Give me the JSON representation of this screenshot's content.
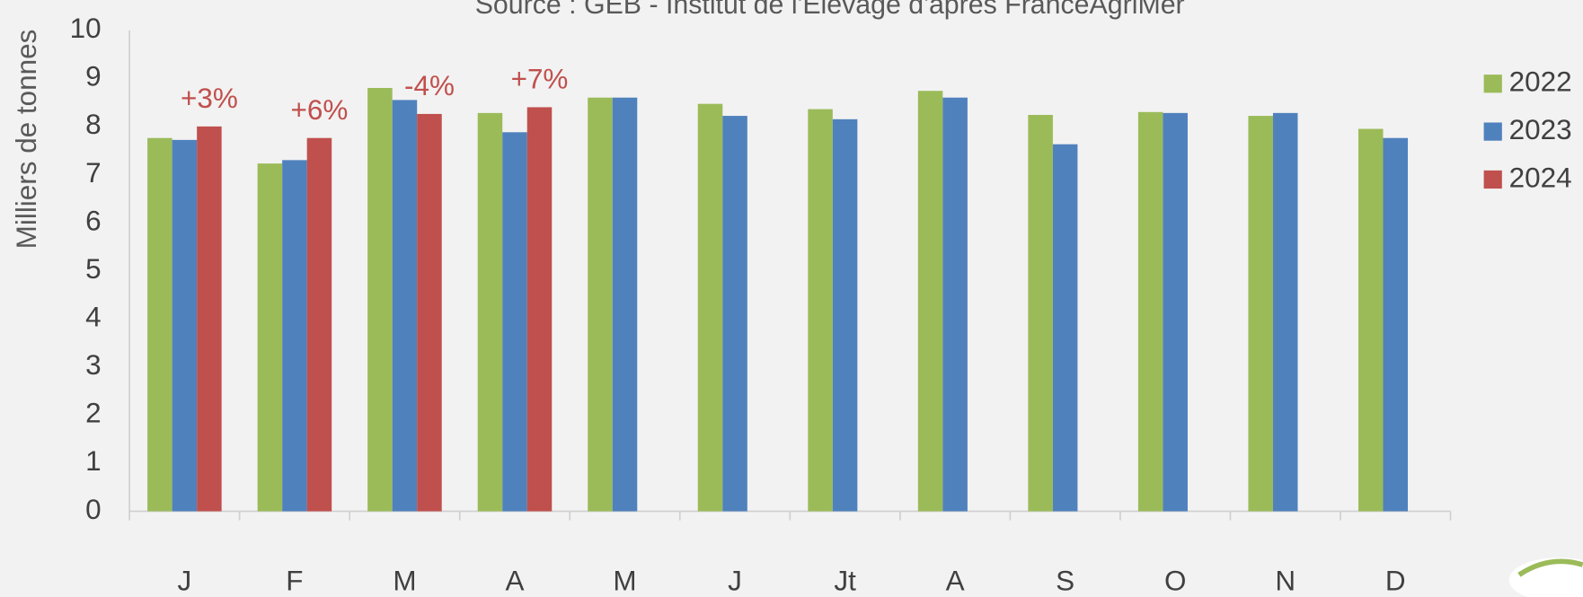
{
  "chart_data": {
    "type": "bar",
    "title": "Source : GEB - Institut de l'Elevage d'après FranceAgriMer",
    "y_label": "Milliers de tonnes",
    "categories": [
      "J",
      "F",
      "M",
      "A",
      "M",
      "J",
      "Jt",
      "A",
      "S",
      "O",
      "N",
      "D"
    ],
    "series": [
      {
        "name": "2022",
        "color": "#9bbb59",
        "values": [
          7.76,
          7.23,
          8.8,
          8.28,
          8.6,
          8.47,
          8.36,
          8.74,
          8.24,
          8.3,
          8.22,
          7.95
        ]
      },
      {
        "name": "2023",
        "color": "#4f81bd",
        "values": [
          7.72,
          7.3,
          8.55,
          7.88,
          8.6,
          8.22,
          8.15,
          8.6,
          7.63,
          8.28,
          8.28,
          7.76
        ]
      },
      {
        "name": "2024",
        "color": "#c0504d",
        "values": [
          8.0,
          7.76,
          8.26,
          8.4,
          null,
          null,
          null,
          null,
          null,
          null,
          null,
          null
        ]
      }
    ],
    "annotations": [
      "+3%",
      "+6%",
      "-4%",
      "+7%"
    ],
    "ylim": [
      0,
      10
    ],
    "yticks": [
      0,
      1,
      2,
      3,
      4,
      5,
      6,
      7,
      8,
      9,
      10
    ],
    "legend": "right"
  }
}
